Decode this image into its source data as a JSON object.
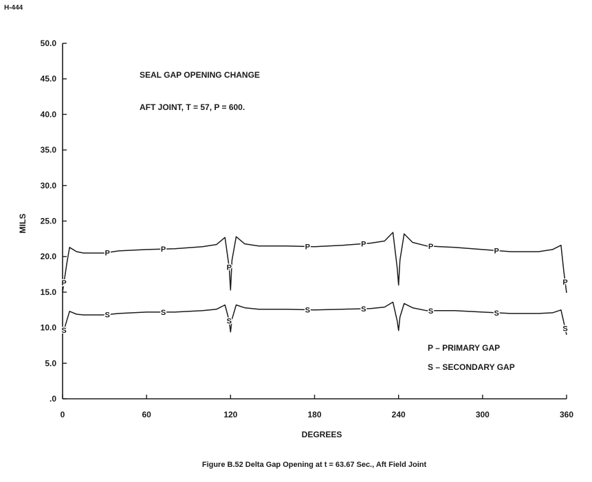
{
  "header": {
    "doc_id": "H-444"
  },
  "chart_data": {
    "type": "line",
    "title": "SEAL GAP OPENING CHANGE",
    "subtitle": "AFT JOINT, T = 57, P = 600.",
    "xlabel": "DEGREES",
    "ylabel": "MILS",
    "xlim": [
      0,
      360
    ],
    "ylim": [
      0,
      50
    ],
    "x_ticks": [
      "0",
      "60",
      "120",
      "180",
      "240",
      "300",
      "360"
    ],
    "y_ticks": [
      "0",
      "5.0",
      "10.0",
      "15.0",
      "20.0",
      "25.0",
      "30.0",
      "35.0",
      "40.0",
      "45.0",
      "50.0"
    ],
    "y_tick_labels": [
      ".0",
      "5.0",
      "10.0",
      "15.0",
      "20.0",
      "25.0",
      "30.0",
      "35.0",
      "40.0",
      "45.0",
      "50.0"
    ],
    "grid": false,
    "legend": [
      {
        "marker": "P",
        "label": "P – PRIMARY GAP"
      },
      {
        "marker": "S",
        "label": "S – SECONDARY GAP"
      }
    ],
    "legend_position": "bottom-right",
    "series": [
      {
        "marker": "P",
        "x": [
          0,
          3,
          5,
          10,
          15,
          20,
          30,
          40,
          60,
          80,
          100,
          110,
          116,
          119,
          120,
          121,
          124,
          130,
          140,
          160,
          180,
          200,
          220,
          230,
          236,
          239,
          240,
          241,
          244,
          250,
          260,
          280,
          300,
          320,
          340,
          350,
          356,
          358,
          360
        ],
        "y": [
          15.0,
          19.0,
          21.3,
          20.7,
          20.5,
          20.5,
          20.5,
          20.8,
          21.0,
          21.1,
          21.4,
          21.7,
          22.7,
          18.5,
          15.3,
          19.5,
          22.8,
          21.8,
          21.5,
          21.5,
          21.4,
          21.6,
          21.9,
          22.2,
          23.4,
          18.5,
          16.0,
          19.5,
          23.2,
          22.0,
          21.5,
          21.3,
          21.0,
          20.7,
          20.7,
          21.0,
          21.6,
          18.0,
          14.9
        ],
        "markers_at_x": [
          1,
          32,
          72,
          119,
          175,
          215,
          263,
          310,
          359
        ]
      },
      {
        "marker": "S",
        "x": [
          0,
          3,
          5,
          10,
          15,
          20,
          30,
          40,
          60,
          80,
          100,
          110,
          116,
          119,
          120,
          121,
          124,
          130,
          140,
          160,
          180,
          200,
          220,
          230,
          236,
          239,
          240,
          241,
          244,
          250,
          260,
          280,
          300,
          320,
          340,
          350,
          356,
          358,
          360
        ],
        "y": [
          9.0,
          11.0,
          12.3,
          11.9,
          11.8,
          11.8,
          11.8,
          12.0,
          12.2,
          12.2,
          12.4,
          12.6,
          13.2,
          11.0,
          9.4,
          11.2,
          13.2,
          12.8,
          12.6,
          12.6,
          12.5,
          12.6,
          12.7,
          12.9,
          13.6,
          11.0,
          9.6,
          11.5,
          13.4,
          12.8,
          12.4,
          12.4,
          12.2,
          12.0,
          12.0,
          12.1,
          12.5,
          10.8,
          9.0
        ],
        "markers_at_x": [
          1,
          32,
          72,
          119,
          175,
          215,
          263,
          310,
          359
        ]
      }
    ]
  },
  "caption": "Figure B.52 Delta Gap Opening at t  =  63.67 Sec., Aft Field Joint"
}
